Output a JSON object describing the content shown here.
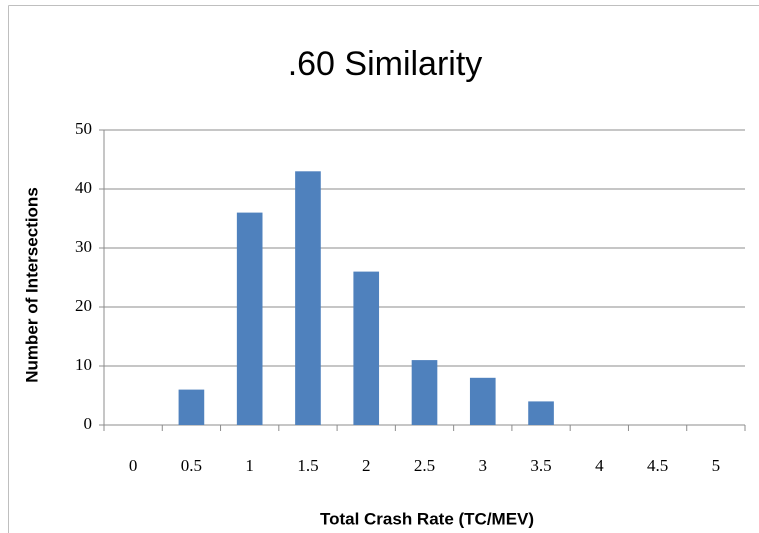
{
  "chart_data": {
    "type": "bar",
    "title": ".60 Similarity",
    "x_label": "Total Crash Rate (TC/MEV)",
    "y_label": "Number of Intersections",
    "categories": [
      "0",
      "0.5",
      "1",
      "1.5",
      "2",
      "2.5",
      "3",
      "3.5",
      "4",
      "4.5",
      "5"
    ],
    "values": [
      0,
      6,
      36,
      43,
      26,
      11,
      8,
      4,
      0,
      0,
      0
    ],
    "color": "#4f81bd",
    "ylim": [
      0,
      50
    ],
    "yticks": [
      0,
      10,
      20,
      30,
      40,
      50
    ],
    "grid": true
  }
}
